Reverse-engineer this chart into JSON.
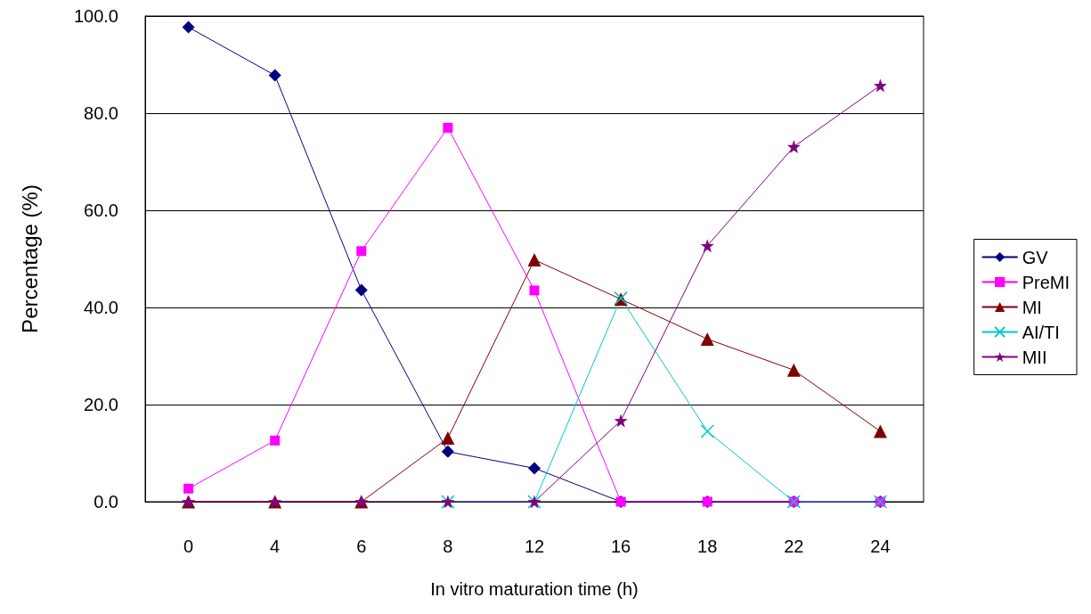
{
  "chart_data": {
    "type": "line",
    "xlabel": "In vitro maturation time (h)",
    "ylabel": "Percentage (%)",
    "categories": [
      "0",
      "4",
      "6",
      "8",
      "12",
      "16",
      "18",
      "22",
      "24"
    ],
    "series": [
      {
        "name": "GV",
        "color": "#000080",
        "marker": "diamond",
        "values": [
          97.7,
          87.8,
          43.6,
          10.3,
          6.9,
          0,
          0,
          0,
          0
        ]
      },
      {
        "name": "PreMI",
        "color": "#ff00ff",
        "marker": "square",
        "values": [
          2.7,
          12.6,
          51.6,
          77.0,
          43.5,
          0,
          0,
          0,
          0
        ]
      },
      {
        "name": "MI",
        "color": "#800000",
        "marker": "triangle",
        "values": [
          0,
          0,
          0,
          13.1,
          49.8,
          41.7,
          33.5,
          27.1,
          14.5
        ]
      },
      {
        "name": "AI/TI",
        "color": "#00c8c8",
        "marker": "cross",
        "values": [
          null,
          null,
          null,
          0,
          0,
          41.9,
          14.5,
          0,
          0
        ]
      },
      {
        "name": "MII",
        "color": "#800080",
        "marker": "star",
        "values": [
          0,
          0,
          0,
          0,
          0,
          16.7,
          52.7,
          73.1,
          85.7
        ]
      }
    ],
    "ylim": [
      0,
      100
    ],
    "yticks": [
      {
        "value": 0,
        "label": "0.0"
      },
      {
        "value": 20,
        "label": "20.0"
      },
      {
        "value": 40,
        "label": "40.0"
      },
      {
        "value": 60,
        "label": "60.0"
      },
      {
        "value": 80,
        "label": "80.0"
      },
      {
        "value": 100,
        "label": "100.0"
      }
    ],
    "grid": "y",
    "legend": "right"
  }
}
